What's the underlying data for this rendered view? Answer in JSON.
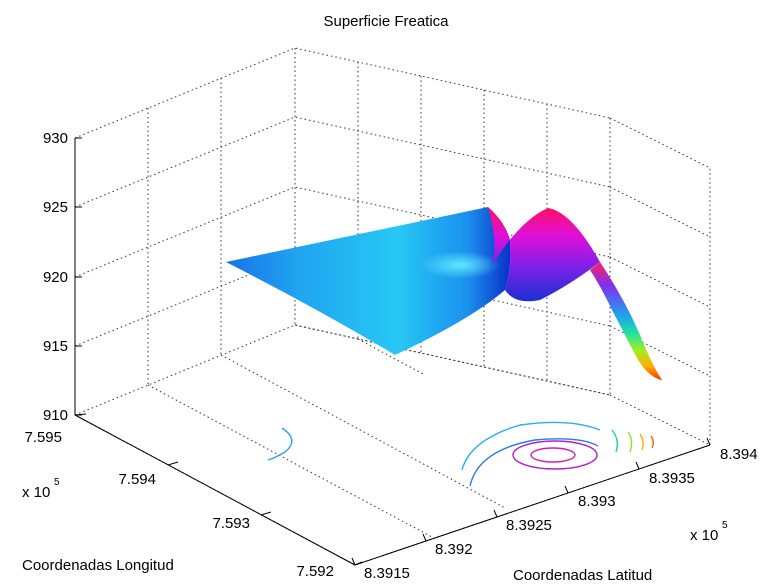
{
  "chart_data": {
    "type": "surface",
    "title": "Superficie Freatica",
    "xlabel": "Coordenadas Latitud",
    "ylabel": "Coordenadas Longitud",
    "zlabel": "",
    "x_multiplier": "x 10",
    "x_multiplier_exp": "5",
    "y_multiplier": "x 10",
    "y_multiplier_exp": "5",
    "x_ticks": [
      "8.3915",
      "8.392",
      "8.3925",
      "8.393",
      "8.3935",
      "8.394"
    ],
    "y_ticks": [
      "7.592",
      "7.593",
      "7.594",
      "7.595"
    ],
    "z_ticks": [
      "910",
      "915",
      "920",
      "925",
      "930"
    ],
    "xlim": [
      839150,
      839400
    ],
    "ylim": [
      759200,
      759500
    ],
    "zlim": [
      910,
      930
    ],
    "grid": true,
    "colormap": "hsv",
    "contours_on_floor": true,
    "colors": {
      "surface_main": "#22b8f0",
      "surface_shadow": "#1060e0",
      "peak": "#ff00a0",
      "contour_low": "#22aaf0",
      "contour_high": "#c000c0"
    }
  }
}
